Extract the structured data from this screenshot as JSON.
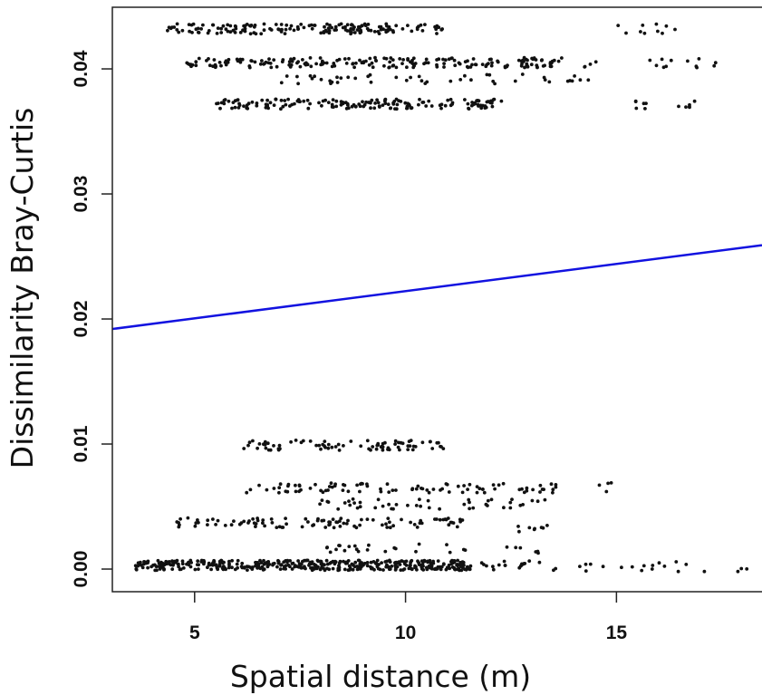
{
  "chart_data": {
    "type": "scatter",
    "title": "",
    "xlabel": "Spatial distance (m)",
    "ylabel": "Dissimilarity Bray-Curtis",
    "xlim": [
      3.05,
      18.45
    ],
    "ylim": [
      -0.00181,
      0.04493
    ],
    "x_ticks": [
      5,
      10,
      15
    ],
    "x_tick_labels": [
      "5",
      "10",
      "15"
    ],
    "y_ticks": [
      0.0,
      0.01,
      0.02,
      0.03,
      0.04
    ],
    "y_tick_labels": [
      "0.00",
      "0.01",
      "0.02",
      "0.03",
      "0.04"
    ],
    "grid": false,
    "legend": "none",
    "point_color": "#111111",
    "clusters": [
      {
        "y": 0.0432,
        "x_range": [
          4.3,
          10.9
        ],
        "count": 170
      },
      {
        "y": 0.0432,
        "x_range": [
          15.0,
          16.5
        ],
        "count": 10
      },
      {
        "y": 0.0405,
        "x_range": [
          4.8,
          13.8
        ],
        "count": 200
      },
      {
        "y": 0.0405,
        "x_range": [
          14.2,
          17.9
        ],
        "count": 16
      },
      {
        "y": 0.0392,
        "x_range": [
          6.9,
          14.5
        ],
        "count": 45
      },
      {
        "y": 0.0372,
        "x_range": [
          5.5,
          12.3
        ],
        "count": 170
      },
      {
        "y": 0.0372,
        "x_range": [
          15.4,
          17.0
        ],
        "count": 12
      },
      {
        "y": 0.0099,
        "x_range": [
          6.1,
          10.9
        ],
        "count": 80
      },
      {
        "y": 0.0065,
        "x_range": [
          6.2,
          13.6
        ],
        "count": 90
      },
      {
        "y": 0.0065,
        "x_range": [
          14.3,
          15.0
        ],
        "count": 4
      },
      {
        "y": 0.0052,
        "x_range": [
          7.8,
          13.5
        ],
        "count": 45
      },
      {
        "y": 0.0037,
        "x_range": [
          4.5,
          11.5
        ],
        "count": 100
      },
      {
        "y": 0.0033,
        "x_range": [
          12.6,
          13.5
        ],
        "count": 8
      },
      {
        "y": 0.0016,
        "x_range": [
          8.0,
          13.2
        ],
        "count": 28
      },
      {
        "y": 0.0003,
        "x_range": [
          3.6,
          11.5
        ],
        "count": 420
      },
      {
        "y": 0.0003,
        "x_range": [
          11.5,
          13.6
        ],
        "count": 22
      },
      {
        "y": 0.0002,
        "x_range": [
          14.0,
          18.2
        ],
        "count": 20
      }
    ],
    "regression_line": {
      "color": "#1212e0",
      "x": [
        3.05,
        18.45
      ],
      "y": [
        0.0192,
        0.0259
      ]
    }
  }
}
